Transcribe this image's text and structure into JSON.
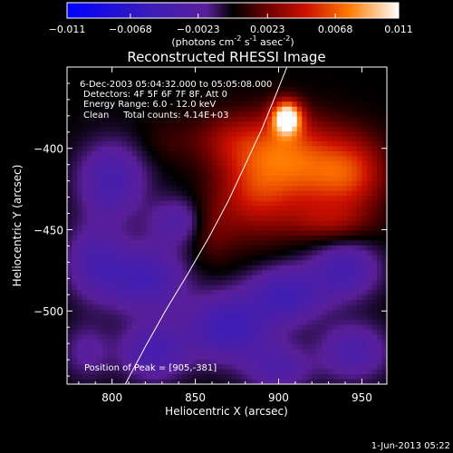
{
  "chart_data": {
    "type": "heatmap",
    "title": "Reconstructed RHESSI Image",
    "xlabel": "Heliocentric X (arcsec)",
    "ylabel": "Heliocentric Y (arcsec)",
    "xlim": [
      773,
      965
    ],
    "ylim": [
      -545,
      -350
    ],
    "xticks": [
      800,
      850,
      900,
      950
    ],
    "yticks": [
      -400,
      -450,
      -500
    ],
    "colorbar": {
      "range": [
        -0.011,
        0.011
      ],
      "ticks": [
        "-0.011",
        "-0.0068",
        "-0.0023",
        "0.0023",
        "0.0068",
        "0.011"
      ],
      "unit_parts": [
        "(photons cm",
        "-2",
        " s",
        "-1",
        " asec",
        "-2",
        ")"
      ]
    },
    "annotations": [
      "6-Dec-2003 05:04:32.000 to 05:05:08.000",
      "Detectors: 4F 5F 6F 7F 8F, Att 0",
      "Energy Range: 6.0 - 12.0 keV",
      "Clean     Total counts: 4.14E+03"
    ],
    "peak_label": "Position of Peak = [905,-381]",
    "peak": {
      "x": 905,
      "y": -381,
      "value": 0.011
    },
    "limb_curve": {
      "x": [
        808,
        820,
        832,
        845,
        858,
        870,
        880,
        890,
        898,
        905
      ],
      "y": [
        -545,
        -522,
        -500,
        -478,
        -455,
        -432,
        -410,
        -388,
        -368,
        -350
      ]
    },
    "blobs": [
      {
        "x": 905,
        "y": -381,
        "sx": 6,
        "sy": 7,
        "a": 0.011
      },
      {
        "x": 900,
        "y": -395,
        "sx": 18,
        "sy": 14,
        "a": 0.0035
      },
      {
        "x": 920,
        "y": -415,
        "sx": 22,
        "sy": 18,
        "a": 0.0055
      },
      {
        "x": 885,
        "y": -425,
        "sx": 16,
        "sy": 20,
        "a": 0.0045
      },
      {
        "x": 945,
        "y": -415,
        "sx": 14,
        "sy": 16,
        "a": 0.0035
      },
      {
        "x": 868,
        "y": -395,
        "sx": 14,
        "sy": 12,
        "a": 0.0025
      },
      {
        "x": 930,
        "y": -445,
        "sx": 18,
        "sy": 8,
        "a": 0.0025
      },
      {
        "x": 860,
        "y": -450,
        "sx": 10,
        "sy": 14,
        "a": 0.002
      },
      {
        "x": 835,
        "y": -395,
        "sx": 12,
        "sy": 10,
        "a": 0.001
      },
      {
        "x": 800,
        "y": -420,
        "sx": 14,
        "sy": 16,
        "a": -0.004
      },
      {
        "x": 790,
        "y": -470,
        "sx": 12,
        "sy": 16,
        "a": -0.0035
      },
      {
        "x": 820,
        "y": -480,
        "sx": 16,
        "sy": 14,
        "a": -0.0045
      },
      {
        "x": 840,
        "y": -445,
        "sx": 12,
        "sy": 10,
        "a": -0.003
      },
      {
        "x": 825,
        "y": -525,
        "sx": 14,
        "sy": 12,
        "a": -0.004
      },
      {
        "x": 870,
        "y": -510,
        "sx": 18,
        "sy": 14,
        "a": -0.005
      },
      {
        "x": 905,
        "y": -490,
        "sx": 16,
        "sy": 12,
        "a": -0.0045
      },
      {
        "x": 940,
        "y": -475,
        "sx": 14,
        "sy": 12,
        "a": -0.004
      },
      {
        "x": 945,
        "y": -525,
        "sx": 14,
        "sy": 12,
        "a": -0.0035
      },
      {
        "x": 900,
        "y": -535,
        "sx": 14,
        "sy": 10,
        "a": -0.003
      },
      {
        "x": 785,
        "y": -525,
        "sx": 10,
        "sy": 12,
        "a": -0.002
      }
    ]
  },
  "footer": {
    "timestamp": "1-Jun-2013 05:22"
  }
}
